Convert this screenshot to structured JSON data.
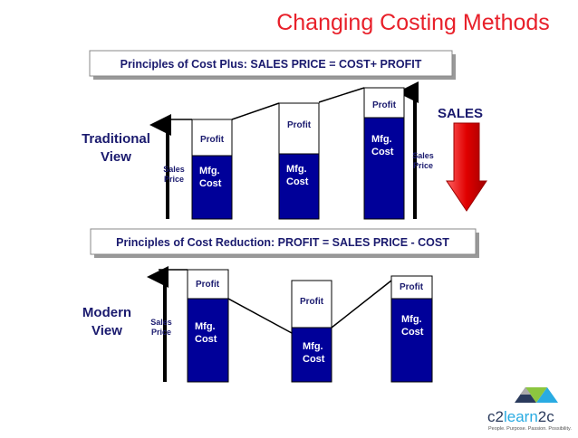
{
  "title": "Changing Costing Methods",
  "traditional": {
    "principle": "Principles of Cost Plus:  SALES PRICE  =  COST+ PROFIT",
    "label": [
      "Traditional",
      "View"
    ],
    "sales_label": "SALES",
    "sales_price_labels": [
      [
        "Sales",
        "Price"
      ],
      [
        "Sales",
        "Price"
      ]
    ],
    "columns": [
      {
        "profit": "Profit",
        "cost": [
          "Mfg.",
          "Cost"
        ]
      },
      {
        "profit": "Profit",
        "cost": [
          "Mfg.",
          "Cost"
        ]
      },
      {
        "profit": "Profit",
        "cost": [
          "Mfg.",
          "Cost"
        ]
      }
    ]
  },
  "modern": {
    "principle": "Principles of Cost Reduction:  PROFIT = SALES PRICE - COST",
    "label": [
      "Modern",
      "View"
    ],
    "sales_price_labels": [
      [
        "Sales",
        "Price"
      ]
    ],
    "columns": [
      {
        "profit": "Profit",
        "cost": [
          "Mfg.",
          "Cost"
        ]
      },
      {
        "profit": "Profit",
        "cost": [
          "Mfg.",
          "Cost"
        ]
      },
      {
        "profit": "Profit",
        "cost": [
          "Mfg.",
          "Cost"
        ]
      }
    ]
  },
  "logo": {
    "name": [
      "c2",
      "learn",
      "2c"
    ],
    "tagline": "People. Purpose. Passion. Possibility."
  }
}
